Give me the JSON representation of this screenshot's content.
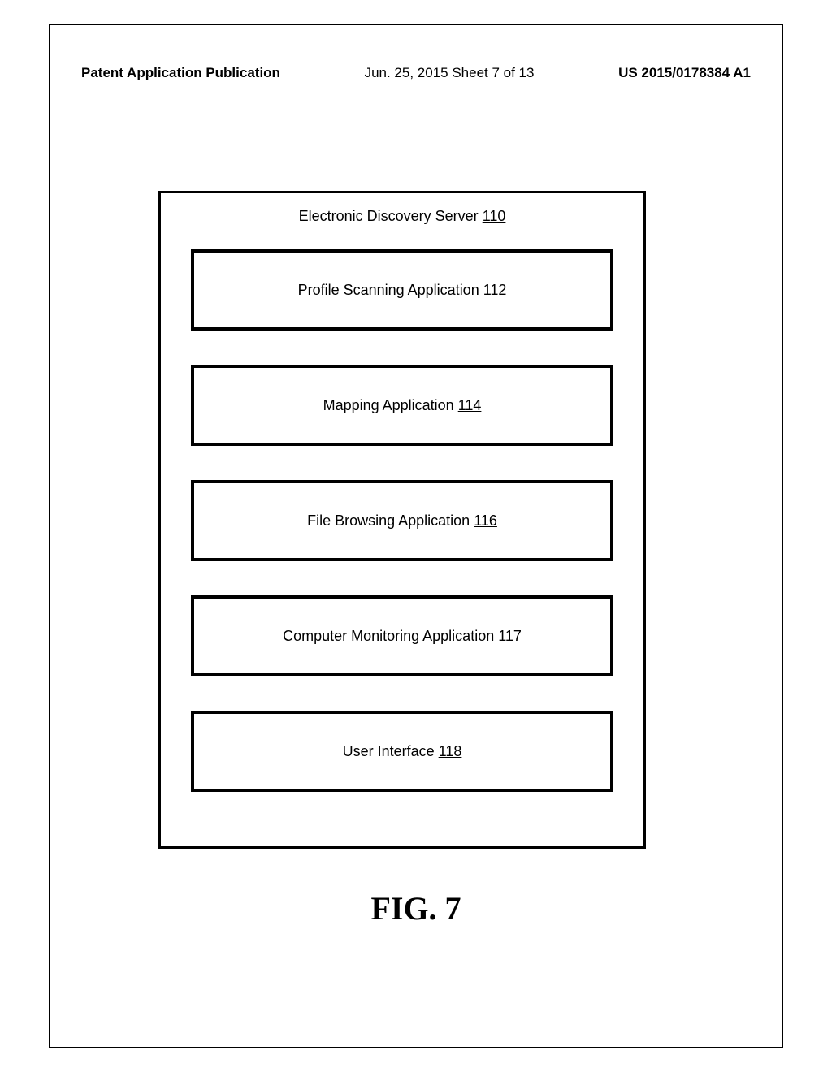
{
  "header": {
    "left": "Patent Application Publication",
    "center": "Jun. 25, 2015  Sheet 7 of 13",
    "right": "US 2015/0178384 A1"
  },
  "diagram": {
    "type": "block-diagram",
    "outer_border_width": 3,
    "inner_border_width": 4,
    "outer_box": {
      "title_text": "Electronic Discovery Server ",
      "title_ref": "110"
    },
    "boxes": [
      {
        "text": "Profile Scanning Application ",
        "ref": "112"
      },
      {
        "text": "Mapping Application ",
        "ref": "114"
      },
      {
        "text": "File Browsing Application ",
        "ref": "116"
      },
      {
        "text": "Computer Monitoring Application ",
        "ref": "117"
      },
      {
        "text": "User Interface ",
        "ref": "118"
      }
    ],
    "colors": {
      "background": "#ffffff",
      "border": "#000000",
      "text": "#000000"
    },
    "font_sizes": {
      "box_text": 18,
      "figure_label": 40,
      "header": 17
    }
  },
  "figure_label": "FIG. 7"
}
